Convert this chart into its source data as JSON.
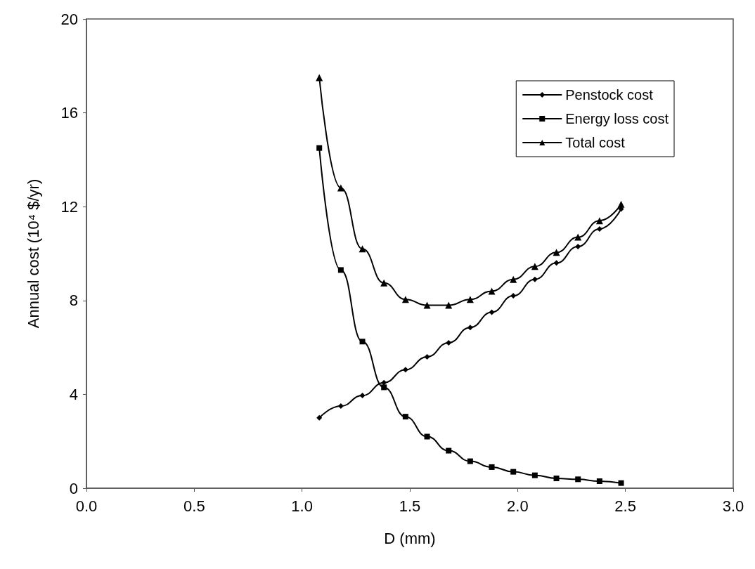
{
  "chart_data": {
    "type": "line",
    "xlabel": "D (mm)",
    "ylabel": "Annual cost (10⁴ $/yr)",
    "xlim": [
      0,
      3
    ],
    "xticks": [
      {
        "value": 0,
        "label": "0.0"
      },
      {
        "value": 0.5,
        "label": "0.5"
      },
      {
        "value": 1,
        "label": "1.0"
      },
      {
        "value": 1.5,
        "label": "1.5"
      },
      {
        "value": 2,
        "label": "2.0"
      },
      {
        "value": 2.5,
        "label": "2.5"
      },
      {
        "value": 3,
        "label": "3.0"
      }
    ],
    "ylim": [
      0,
      20
    ],
    "yticks": [
      0,
      4,
      8,
      12,
      16,
      20
    ],
    "grid": false,
    "legend": "top right",
    "line_style": "solid",
    "x": [
      1.08,
      1.18,
      1.28,
      1.38,
      1.48,
      1.58,
      1.68,
      1.78,
      1.88,
      1.98,
      2.08,
      2.18,
      2.28,
      2.38,
      2.48
    ],
    "series": [
      {
        "name": "Penstock cost",
        "color": "#000000",
        "marker": "diamond",
        "values": [
          3.0,
          3.5,
          3.95,
          4.5,
          5.05,
          5.6,
          6.2,
          6.85,
          7.5,
          8.2,
          8.9,
          9.6,
          10.3,
          11.05,
          11.9
        ]
      },
      {
        "name": "Energy loss cost",
        "color": "#000000",
        "marker": "square",
        "values": [
          14.5,
          9.3,
          6.25,
          4.3,
          3.05,
          2.2,
          1.6,
          1.15,
          0.9,
          0.7,
          0.55,
          0.42,
          0.38,
          0.3,
          0.22
        ]
      },
      {
        "name": "Total cost",
        "color": "#000000",
        "marker": "triangle",
        "values": [
          17.5,
          12.8,
          10.2,
          8.75,
          8.05,
          7.8,
          7.8,
          8.05,
          8.4,
          8.9,
          9.45,
          10.05,
          10.7,
          11.4,
          12.1
        ]
      }
    ]
  }
}
